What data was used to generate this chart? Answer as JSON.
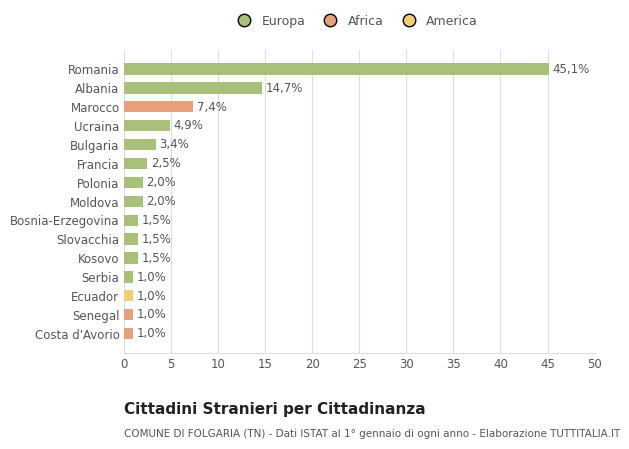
{
  "categories": [
    "Romania",
    "Albania",
    "Marocco",
    "Ucraina",
    "Bulgaria",
    "Francia",
    "Polonia",
    "Moldova",
    "Bosnia-Erzegovina",
    "Slovacchia",
    "Kosovo",
    "Serbia",
    "Ecuador",
    "Senegal",
    "Costa d'Avorio"
  ],
  "values": [
    45.1,
    14.7,
    7.4,
    4.9,
    3.4,
    2.5,
    2.0,
    2.0,
    1.5,
    1.5,
    1.5,
    1.0,
    1.0,
    1.0,
    1.0
  ],
  "labels": [
    "45,1%",
    "14,7%",
    "7,4%",
    "4,9%",
    "3,4%",
    "2,5%",
    "2,0%",
    "2,0%",
    "1,5%",
    "1,5%",
    "1,5%",
    "1,0%",
    "1,0%",
    "1,0%",
    "1,0%"
  ],
  "colors": [
    "#a8c07a",
    "#a8c07a",
    "#e8a07a",
    "#a8c07a",
    "#a8c07a",
    "#a8c07a",
    "#a8c07a",
    "#a8c07a",
    "#a8c07a",
    "#a8c07a",
    "#a8c07a",
    "#a8c07a",
    "#f0d070",
    "#e8a07a",
    "#e8a07a"
  ],
  "legend": [
    {
      "label": "Europa",
      "color": "#a8c07a"
    },
    {
      "label": "Africa",
      "color": "#e8a07a"
    },
    {
      "label": "America",
      "color": "#f0d070"
    }
  ],
  "xlim": [
    0,
    50
  ],
  "xticks": [
    0,
    5,
    10,
    15,
    20,
    25,
    30,
    35,
    40,
    45,
    50
  ],
  "title": "Cittadini Stranieri per Cittadinanza",
  "subtitle": "COMUNE DI FOLGARIA (TN) - Dati ISTAT al 1° gennaio di ogni anno - Elaborazione TUTTITALIA.IT",
  "background_color": "#ffffff",
  "grid_color": "#dddddd",
  "bar_height": 0.6,
  "label_fontsize": 8.5,
  "tick_fontsize": 8.5,
  "title_fontsize": 11,
  "subtitle_fontsize": 7.5
}
